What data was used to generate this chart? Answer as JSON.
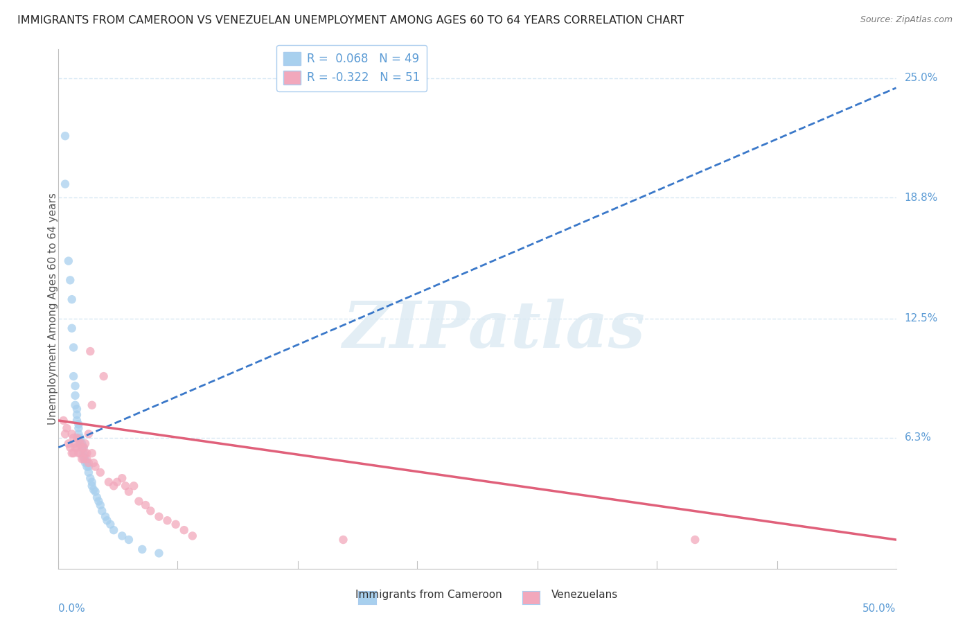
{
  "title": "IMMIGRANTS FROM CAMEROON VS VENEZUELAN UNEMPLOYMENT AMONG AGES 60 TO 64 YEARS CORRELATION CHART",
  "source": "Source: ZipAtlas.com",
  "ylabel": "Unemployment Among Ages 60 to 64 years",
  "xlim": [
    0.0,
    0.5
  ],
  "ylim": [
    -0.005,
    0.265
  ],
  "blue_R": 0.068,
  "blue_N": 49,
  "pink_R": -0.322,
  "pink_N": 51,
  "blue_color": "#A8D0EE",
  "pink_color": "#F2A8BC",
  "blue_line_color": "#3A78C9",
  "pink_line_color": "#E0607A",
  "watermark_text": "ZIPatlas",
  "legend_label_blue": "Immigrants from Cameroon",
  "legend_label_pink": "Venezuelans",
  "blue_scatter_x": [
    0.004,
    0.004,
    0.006,
    0.007,
    0.008,
    0.008,
    0.009,
    0.009,
    0.01,
    0.01,
    0.01,
    0.011,
    0.011,
    0.011,
    0.012,
    0.012,
    0.012,
    0.012,
    0.013,
    0.013,
    0.013,
    0.014,
    0.014,
    0.015,
    0.015,
    0.015,
    0.016,
    0.016,
    0.017,
    0.017,
    0.018,
    0.018,
    0.019,
    0.02,
    0.02,
    0.021,
    0.022,
    0.023,
    0.024,
    0.025,
    0.026,
    0.028,
    0.029,
    0.031,
    0.033,
    0.038,
    0.042,
    0.05,
    0.06
  ],
  "blue_scatter_y": [
    0.22,
    0.195,
    0.155,
    0.145,
    0.135,
    0.12,
    0.11,
    0.095,
    0.09,
    0.085,
    0.08,
    0.078,
    0.075,
    0.072,
    0.07,
    0.068,
    0.065,
    0.063,
    0.063,
    0.062,
    0.06,
    0.06,
    0.058,
    0.058,
    0.055,
    0.053,
    0.052,
    0.05,
    0.05,
    0.048,
    0.048,
    0.045,
    0.042,
    0.04,
    0.038,
    0.036,
    0.035,
    0.032,
    0.03,
    0.028,
    0.025,
    0.022,
    0.02,
    0.018,
    0.015,
    0.012,
    0.01,
    0.005,
    0.003
  ],
  "pink_scatter_x": [
    0.003,
    0.004,
    0.005,
    0.006,
    0.007,
    0.008,
    0.008,
    0.009,
    0.009,
    0.01,
    0.01,
    0.011,
    0.011,
    0.012,
    0.012,
    0.013,
    0.013,
    0.014,
    0.014,
    0.015,
    0.015,
    0.016,
    0.016,
    0.017,
    0.017,
    0.018,
    0.018,
    0.019,
    0.02,
    0.02,
    0.021,
    0.022,
    0.025,
    0.027,
    0.03,
    0.033,
    0.035,
    0.038,
    0.04,
    0.042,
    0.045,
    0.048,
    0.052,
    0.055,
    0.06,
    0.065,
    0.07,
    0.075,
    0.08,
    0.38,
    0.17
  ],
  "pink_scatter_y": [
    0.072,
    0.065,
    0.068,
    0.06,
    0.058,
    0.065,
    0.055,
    0.063,
    0.055,
    0.06,
    0.058,
    0.063,
    0.058,
    0.062,
    0.055,
    0.06,
    0.055,
    0.058,
    0.052,
    0.058,
    0.052,
    0.06,
    0.055,
    0.055,
    0.052,
    0.05,
    0.065,
    0.108,
    0.08,
    0.055,
    0.05,
    0.048,
    0.045,
    0.095,
    0.04,
    0.038,
    0.04,
    0.042,
    0.038,
    0.035,
    0.038,
    0.03,
    0.028,
    0.025,
    0.022,
    0.02,
    0.018,
    0.015,
    0.012,
    0.01,
    0.01
  ],
  "blue_trend_x": [
    0.0,
    0.5
  ],
  "blue_trend_y": [
    0.058,
    0.245
  ],
  "pink_trend_x": [
    0.0,
    0.5
  ],
  "pink_trend_y": [
    0.072,
    0.01
  ],
  "ytick_vals": [
    0.0,
    0.063,
    0.125,
    0.188,
    0.25
  ],
  "ytick_labels": [
    "",
    "6.3%",
    "12.5%",
    "18.8%",
    "25.0%"
  ],
  "xtick_positions": [
    0.0,
    0.071,
    0.143,
    0.214,
    0.286,
    0.357,
    0.429,
    0.5
  ],
  "bg_color": "#FFFFFF",
  "grid_color": "#D8E8F4",
  "spine_color": "#C0C0C0",
  "label_color": "#5B9BD5",
  "title_color": "#222222",
  "source_color": "#777777"
}
